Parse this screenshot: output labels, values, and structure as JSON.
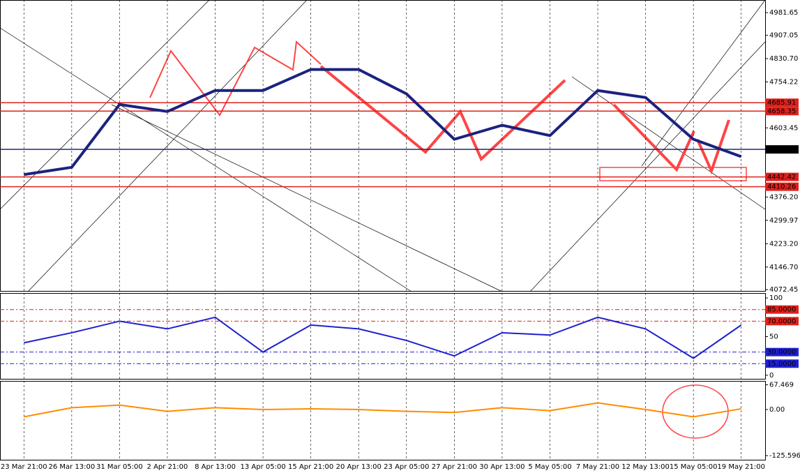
{
  "chart_data": [
    {
      "type": "line",
      "categories": [
        "23 Mar 21:00",
        "26 Mar 13:00",
        "31 Mar 05:00",
        "2 Apr 21:00",
        "8 Apr 13:00",
        "13 Apr 05:00",
        "15 Apr 21:00",
        "20 Apr 13:00",
        "23 Apr 05:00",
        "27 Apr 21:00",
        "30 Apr 13:00",
        "5 May 05:00",
        "7 May 21:00",
        "12 May 13:00",
        "15 May 05:00",
        "19 May 21:00"
      ],
      "values": [
        4450,
        4474,
        4680,
        4657,
        4726,
        4726,
        4795,
        4795,
        4715,
        4566,
        4612,
        4578,
        4726,
        4703,
        4566,
        4509
      ],
      "color": "#1a237e",
      "ylim": [
        4066,
        5023
      ],
      "yticks": [
        4981.65,
        4907.05,
        {
          "value": 4830.7,
          "label": "4830.70"
        },
        4754.22,
        4603.45,
        {
          "value": 4376.2,
          "label": "4376.20"
        },
        4299.97,
        {
          "value": 4223.2,
          "label": "4223.20"
        },
        {
          "value": 4146.7,
          "label": "4146.70"
        },
        4072.45
      ],
      "levels": [
        4685.91,
        4658.35,
        4532.72,
        4442.42,
        4410.26
      ],
      "level_colors": [
        "#e0201b",
        "#e0201b",
        "#000000",
        "#e0201b",
        "#e0201b"
      ]
    },
    {
      "type": "line",
      "values": [
        42,
        55,
        70,
        60,
        75,
        30,
        65,
        60,
        45,
        25,
        55,
        52,
        75,
        60,
        22,
        65
      ],
      "color": "#1f1fd0",
      "ylim": [
        -5.5,
        106.4
      ],
      "yticks": [
        100,
        50,
        0
      ],
      "levels": [
        {
          "value": 85,
          "label": "85.0000"
        },
        {
          "value": 70,
          "label": "70.0000"
        },
        {
          "value": 30,
          "label": "30.0000"
        },
        {
          "value": 15,
          "label": "15.0000"
        }
      ],
      "level_colors": [
        "#e0201b",
        "#e0201b",
        "#1f1fd0",
        "#1f1fd0"
      ]
    },
    {
      "type": "line",
      "values": [
        -20,
        5,
        12,
        -5,
        5,
        0,
        2,
        0,
        -5,
        -8,
        5,
        -3,
        18,
        0,
        -20,
        2
      ],
      "color": "#ff8c00",
      "ylim": [
        -138.7,
        77.9
      ],
      "yticks": [
        67.469,
        {
          "value": 0,
          "label": "0.00"
        },
        -125.5969
      ]
    }
  ]
}
